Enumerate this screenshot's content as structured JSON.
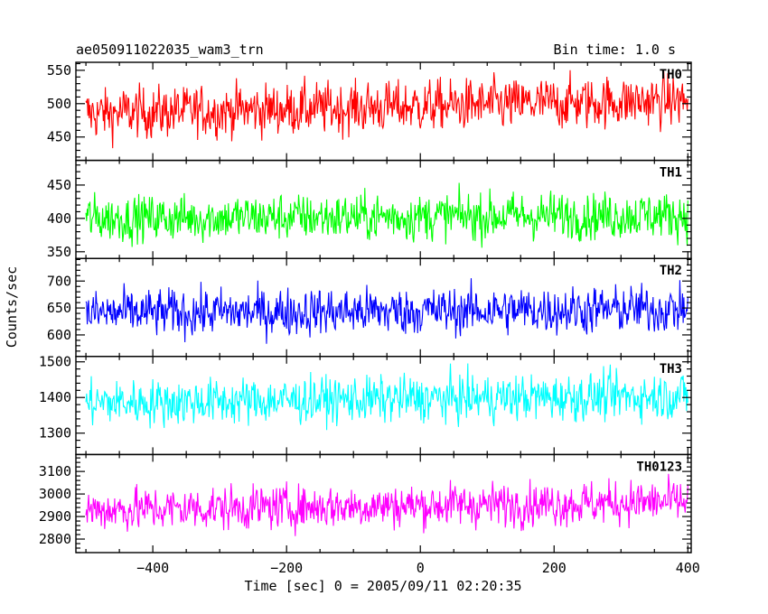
{
  "chart_data": {
    "type": "line",
    "title_left": "ae050911022035_wam3_trn",
    "title_right": "Bin time: 1.0 s",
    "xlabel": "Time [sec] 0 = 2005/09/11 02:20:35",
    "ylabel": "Counts/sec",
    "xlim": [
      -515,
      405
    ],
    "x_range": [
      -500,
      400
    ],
    "x_ticks": [
      -400,
      -200,
      0,
      200,
      400
    ],
    "x_tick_labels": [
      "−400",
      "−200",
      "0",
      "200",
      "400"
    ],
    "panels": [
      {
        "name": "TH0",
        "color": "#ff0000",
        "ylim": [
          415,
          562
        ],
        "y_ticks": [
          450,
          500,
          550
        ],
        "y_tick_labels": [
          "450",
          "500",
          "550"
        ],
        "mean_start": 485,
        "mean_end": 505,
        "noise": 22
      },
      {
        "name": "TH1",
        "color": "#00ff00",
        "ylim": [
          340,
          487
        ],
        "y_ticks": [
          350,
          400,
          450
        ],
        "y_tick_labels": [
          "350",
          "400",
          "450"
        ],
        "mean_start": 400,
        "mean_end": 405,
        "noise": 20
      },
      {
        "name": "TH2",
        "color": "#0000ff",
        "ylim": [
          560,
          742
        ],
        "y_ticks": [
          600,
          650,
          700
        ],
        "y_tick_labels": [
          "600",
          "650",
          "700"
        ],
        "mean_start": 640,
        "mean_end": 648,
        "noise": 25
      },
      {
        "name": "TH3",
        "color": "#00ffff",
        "ylim": [
          1240,
          1515
        ],
        "y_ticks": [
          1300,
          1400,
          1500
        ],
        "y_tick_labels": [
          "1300",
          "1400",
          "1500"
        ],
        "mean_start": 1385,
        "mean_end": 1405,
        "noise": 37
      },
      {
        "name": "TH0123",
        "color": "#ff00ff",
        "ylim": [
          2740,
          3175
        ],
        "y_ticks": [
          2800,
          2900,
          3000,
          3100
        ],
        "y_tick_labels": [
          "2800",
          "2900",
          "3000",
          "3100"
        ],
        "mean_start": 2930,
        "mean_end": 2965,
        "noise": 55
      }
    ]
  }
}
